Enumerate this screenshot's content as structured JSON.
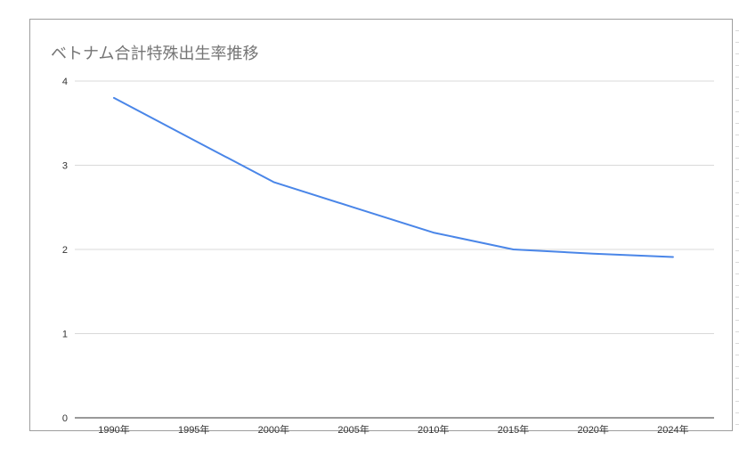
{
  "chart_data": {
    "type": "line",
    "title": "ベトナム合計特殊出生率推移",
    "xlabel": "",
    "ylabel": "",
    "categories": [
      "1990年",
      "1995年",
      "2000年",
      "2005年",
      "2010年",
      "2015年",
      "2020年",
      "2024年"
    ],
    "series": [
      {
        "values": [
          3.8,
          3.3,
          2.8,
          2.5,
          2.2,
          2.0,
          1.95,
          1.91
        ],
        "color": "#4a86e8"
      }
    ],
    "ylim": [
      0,
      4
    ],
    "yticks": [
      0,
      1,
      2,
      3,
      4
    ],
    "grid": true,
    "legend": "none",
    "colors": {
      "line": "#4a86e8",
      "grid": "#d9d9d9",
      "axis": "#333333",
      "title": "#757575",
      "border": "#9e9e9e"
    }
  }
}
